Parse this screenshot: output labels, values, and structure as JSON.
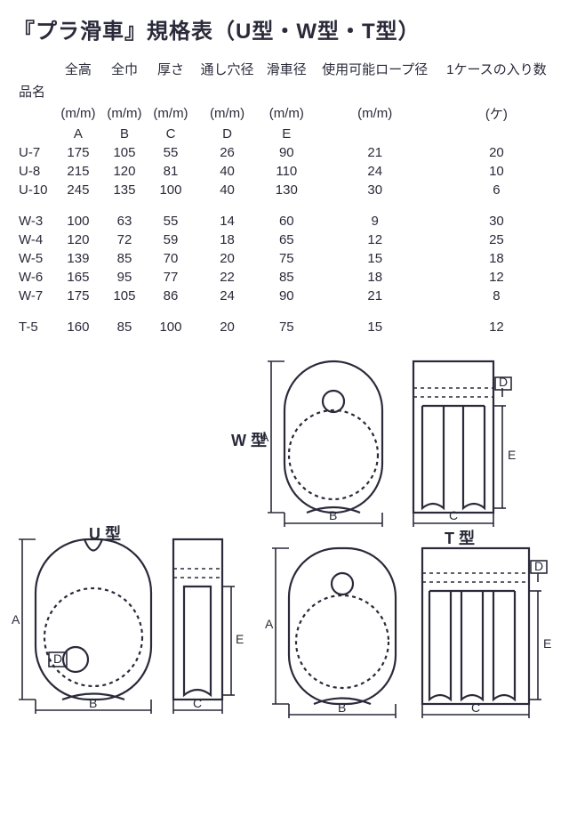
{
  "title": "『プラ滑車』規格表（U型・W型・T型）",
  "headers": {
    "name": "品名",
    "A": "全高",
    "B": "全巾",
    "C": "厚さ",
    "D": "通し穴径",
    "E": "滑車径",
    "rope": "使用可能ロープ径",
    "case": "1ケースの入り数"
  },
  "units": {
    "A": "(m/m)",
    "B": "(m/m)",
    "C": "(m/m)",
    "D": "(m/m)",
    "E": "(m/m)",
    "rope": "(m/m)",
    "case": "(ケ)"
  },
  "letters": {
    "A": "A",
    "B": "B",
    "C": "C",
    "D": "D",
    "E": "E"
  },
  "rows": [
    {
      "name": "U-7",
      "A": 175,
      "B": 105,
      "C": 55,
      "D": 26,
      "E": 90,
      "rope": 21,
      "case": 20
    },
    {
      "name": "U-8",
      "A": 215,
      "B": 120,
      "C": 81,
      "D": 40,
      "E": 110,
      "rope": 24,
      "case": 10
    },
    {
      "name": "U-10",
      "A": 245,
      "B": 135,
      "C": 100,
      "D": 40,
      "E": 130,
      "rope": 30,
      "case": 6
    },
    {
      "_gap": true
    },
    {
      "name": "W-3",
      "A": 100,
      "B": 63,
      "C": 55,
      "D": 14,
      "E": 60,
      "rope": 9,
      "case": 30
    },
    {
      "name": "W-4",
      "A": 120,
      "B": 72,
      "C": 59,
      "D": 18,
      "E": 65,
      "rope": 12,
      "case": 25
    },
    {
      "name": "W-5",
      "A": 139,
      "B": 85,
      "C": 70,
      "D": 20,
      "E": 75,
      "rope": 15,
      "case": 18
    },
    {
      "name": "W-6",
      "A": 165,
      "B": 95,
      "C": 77,
      "D": 22,
      "E": 85,
      "rope": 18,
      "case": 12
    },
    {
      "name": "W-7",
      "A": 175,
      "B": 105,
      "C": 86,
      "D": 24,
      "E": 90,
      "rope": 21,
      "case": 8
    },
    {
      "_gap": true
    },
    {
      "name": "T-5",
      "A": 160,
      "B": 85,
      "C": 100,
      "D": 20,
      "E": 75,
      "rope": 15,
      "case": 12
    }
  ],
  "labels": {
    "U": "U 型",
    "W": "W 型",
    "T": "T 型"
  },
  "dim": {
    "A": "A",
    "B": "B",
    "C": "C",
    "D": "D",
    "E": "E"
  }
}
